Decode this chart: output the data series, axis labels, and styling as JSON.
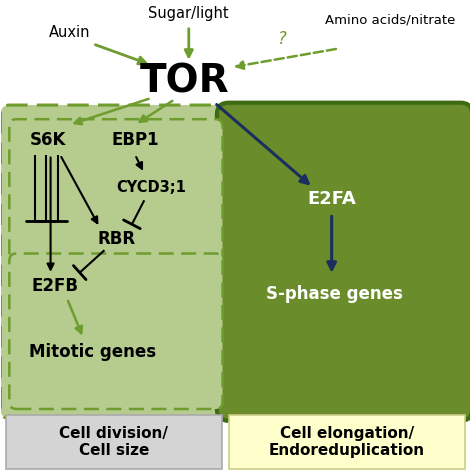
{
  "fig_width": 4.74,
  "fig_height": 4.74,
  "dpi": 100,
  "bg_color": "#ffffff",
  "light_green": "#b5cc8e",
  "mid_green": "#6e9c2f",
  "dark_green_fill": "#6b8c2a",
  "dark_green_border": "#3d6b12",
  "navy": "#1a2f5e",
  "label_gray_bg": "#d4d4d4",
  "label_yellow_bg": "#ffffcc",
  "tor_label": "TOR",
  "sugar_light_label": "Sugar/light",
  "auxin_label": "Auxin",
  "amino_label": "Amino acids/nitrate",
  "s6k_label": "S6K",
  "ebp1_label": "EBP1",
  "cycd_label": "CYCD3;1",
  "rbr_label": "RBR",
  "e2fb_label": "E2FB",
  "mitotic_label": "Mitotic genes",
  "e2fa_label": "E2FA",
  "sphase_label": "S-phase genes",
  "cell_div_label": "Cell division/\nCell size",
  "cell_elong_label": "Cell elongation/\nEndoreduplication"
}
